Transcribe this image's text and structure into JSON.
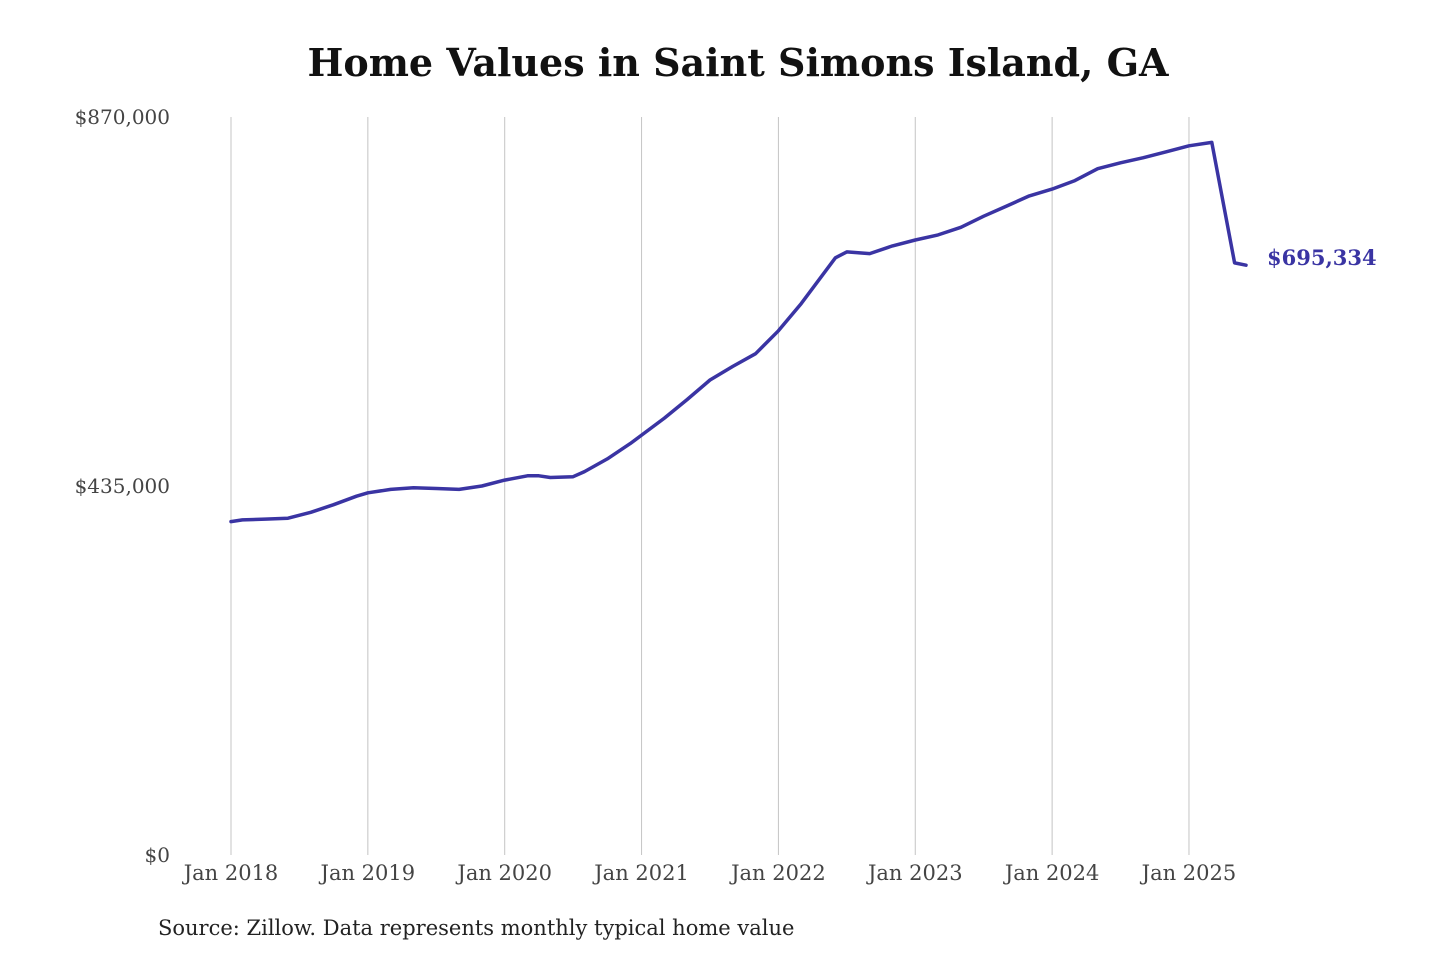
{
  "page": {
    "title": "Home Values in Saint Simons Island, GA"
  },
  "footer": {
    "source": "Source: Zillow. Data represents monthly typical home value"
  },
  "chart_data": {
    "type": "line",
    "title": "Home Values in Saint Simons Island, GA",
    "xlabel": "",
    "ylabel": "",
    "ylim": [
      0,
      870000
    ],
    "yticks": [
      {
        "value": 0,
        "label": "$0"
      },
      {
        "value": 435000,
        "label": "$435,000"
      },
      {
        "value": 870000,
        "label": "$870,000"
      }
    ],
    "xticks": [
      {
        "value": 2018.0,
        "label": "Jan 2018"
      },
      {
        "value": 2019.0,
        "label": "Jan 2019"
      },
      {
        "value": 2020.0,
        "label": "Jan 2020"
      },
      {
        "value": 2021.0,
        "label": "Jan 2021"
      },
      {
        "value": 2022.0,
        "label": "Jan 2022"
      },
      {
        "value": 2023.0,
        "label": "Jan 2023"
      },
      {
        "value": 2024.0,
        "label": "Jan 2024"
      },
      {
        "value": 2025.0,
        "label": "Jan 2025"
      }
    ],
    "xlim": [
      2018.0,
      2025.4167
    ],
    "grid": "vertical",
    "line_color": "#3a34a3",
    "end_label": "$695,334",
    "series": [
      {
        "x": [
          2018.0,
          2018.0833,
          2018.25,
          2018.4167,
          2018.5833,
          2018.75,
          2018.9167,
          2019.0,
          2019.1667,
          2019.3333,
          2019.5,
          2019.6667,
          2019.8333,
          2020.0,
          2020.1667,
          2020.25,
          2020.3333,
          2020.5,
          2020.5833,
          2020.75,
          2020.9167,
          2021.0,
          2021.1667,
          2021.3333,
          2021.5,
          2021.6667,
          2021.8333,
          2022.0,
          2022.1667,
          2022.3333,
          2022.4167,
          2022.5,
          2022.6667,
          2022.8333,
          2023.0,
          2023.1667,
          2023.3333,
          2023.5,
          2023.6667,
          2023.8333,
          2024.0,
          2024.1667,
          2024.3333,
          2024.5,
          2024.6667,
          2024.8333,
          2025.0,
          2025.1667,
          2025.3333,
          2025.4167
        ],
        "y": [
          393000,
          395000,
          396000,
          397000,
          404000,
          413000,
          423000,
          427000,
          431000,
          433000,
          432000,
          431000,
          435000,
          442000,
          447000,
          447000,
          445000,
          446000,
          452000,
          467000,
          485000,
          495000,
          515000,
          537000,
          560000,
          576000,
          591000,
          618000,
          650000,
          686000,
          704000,
          711000,
          709000,
          718000,
          725000,
          731000,
          740000,
          753000,
          765000,
          777000,
          785000,
          795000,
          809000,
          816000,
          822000,
          829000,
          836000,
          840000,
          698000,
          695334
        ]
      }
    ]
  }
}
